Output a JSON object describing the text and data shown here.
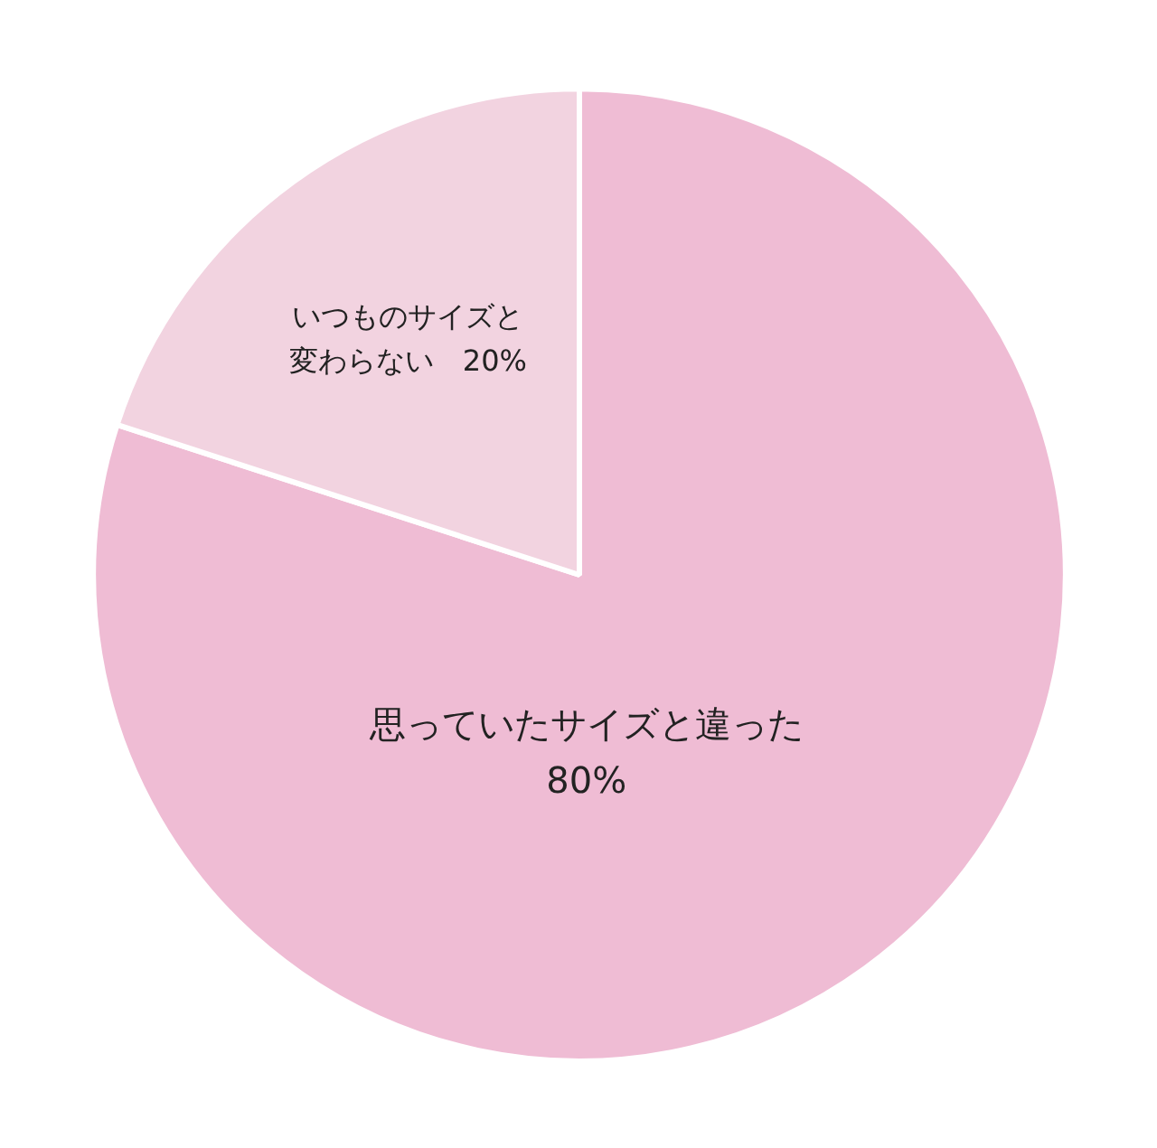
{
  "chart_data": {
    "type": "pie",
    "categories": [
      "思っていたサイズと違った",
      "いつものサイズと変わらない"
    ],
    "values": [
      80,
      20
    ],
    "value_labels": [
      "80%",
      "20%"
    ],
    "colors": [
      "#efbcd4",
      "#f2d3e0"
    ],
    "legend": false
  }
}
